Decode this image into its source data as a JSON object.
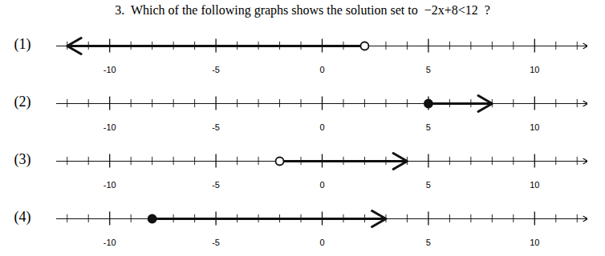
{
  "chart_data": {
    "type": "number_line",
    "title": "3.  Which of the following graphs shows the solution set to  −2x+8<12  ?",
    "xlim": [
      -12.5,
      12.5
    ],
    "xticks": [
      -10,
      -5,
      0,
      5,
      10
    ],
    "color": "#111111",
    "series": [
      {
        "name": "(1)",
        "point": 2,
        "marker": "open",
        "direction": "left",
        "arrow_end": -12
      },
      {
        "name": "(2)",
        "point": 5,
        "marker": "filled",
        "direction": "right",
        "arrow_end": 8
      },
      {
        "name": "(3)",
        "point": -2,
        "marker": "open",
        "direction": "right",
        "arrow_end": 4
      },
      {
        "name": "(4)",
        "point": -8,
        "marker": "filled",
        "direction": "right",
        "arrow_end": 3
      }
    ]
  }
}
